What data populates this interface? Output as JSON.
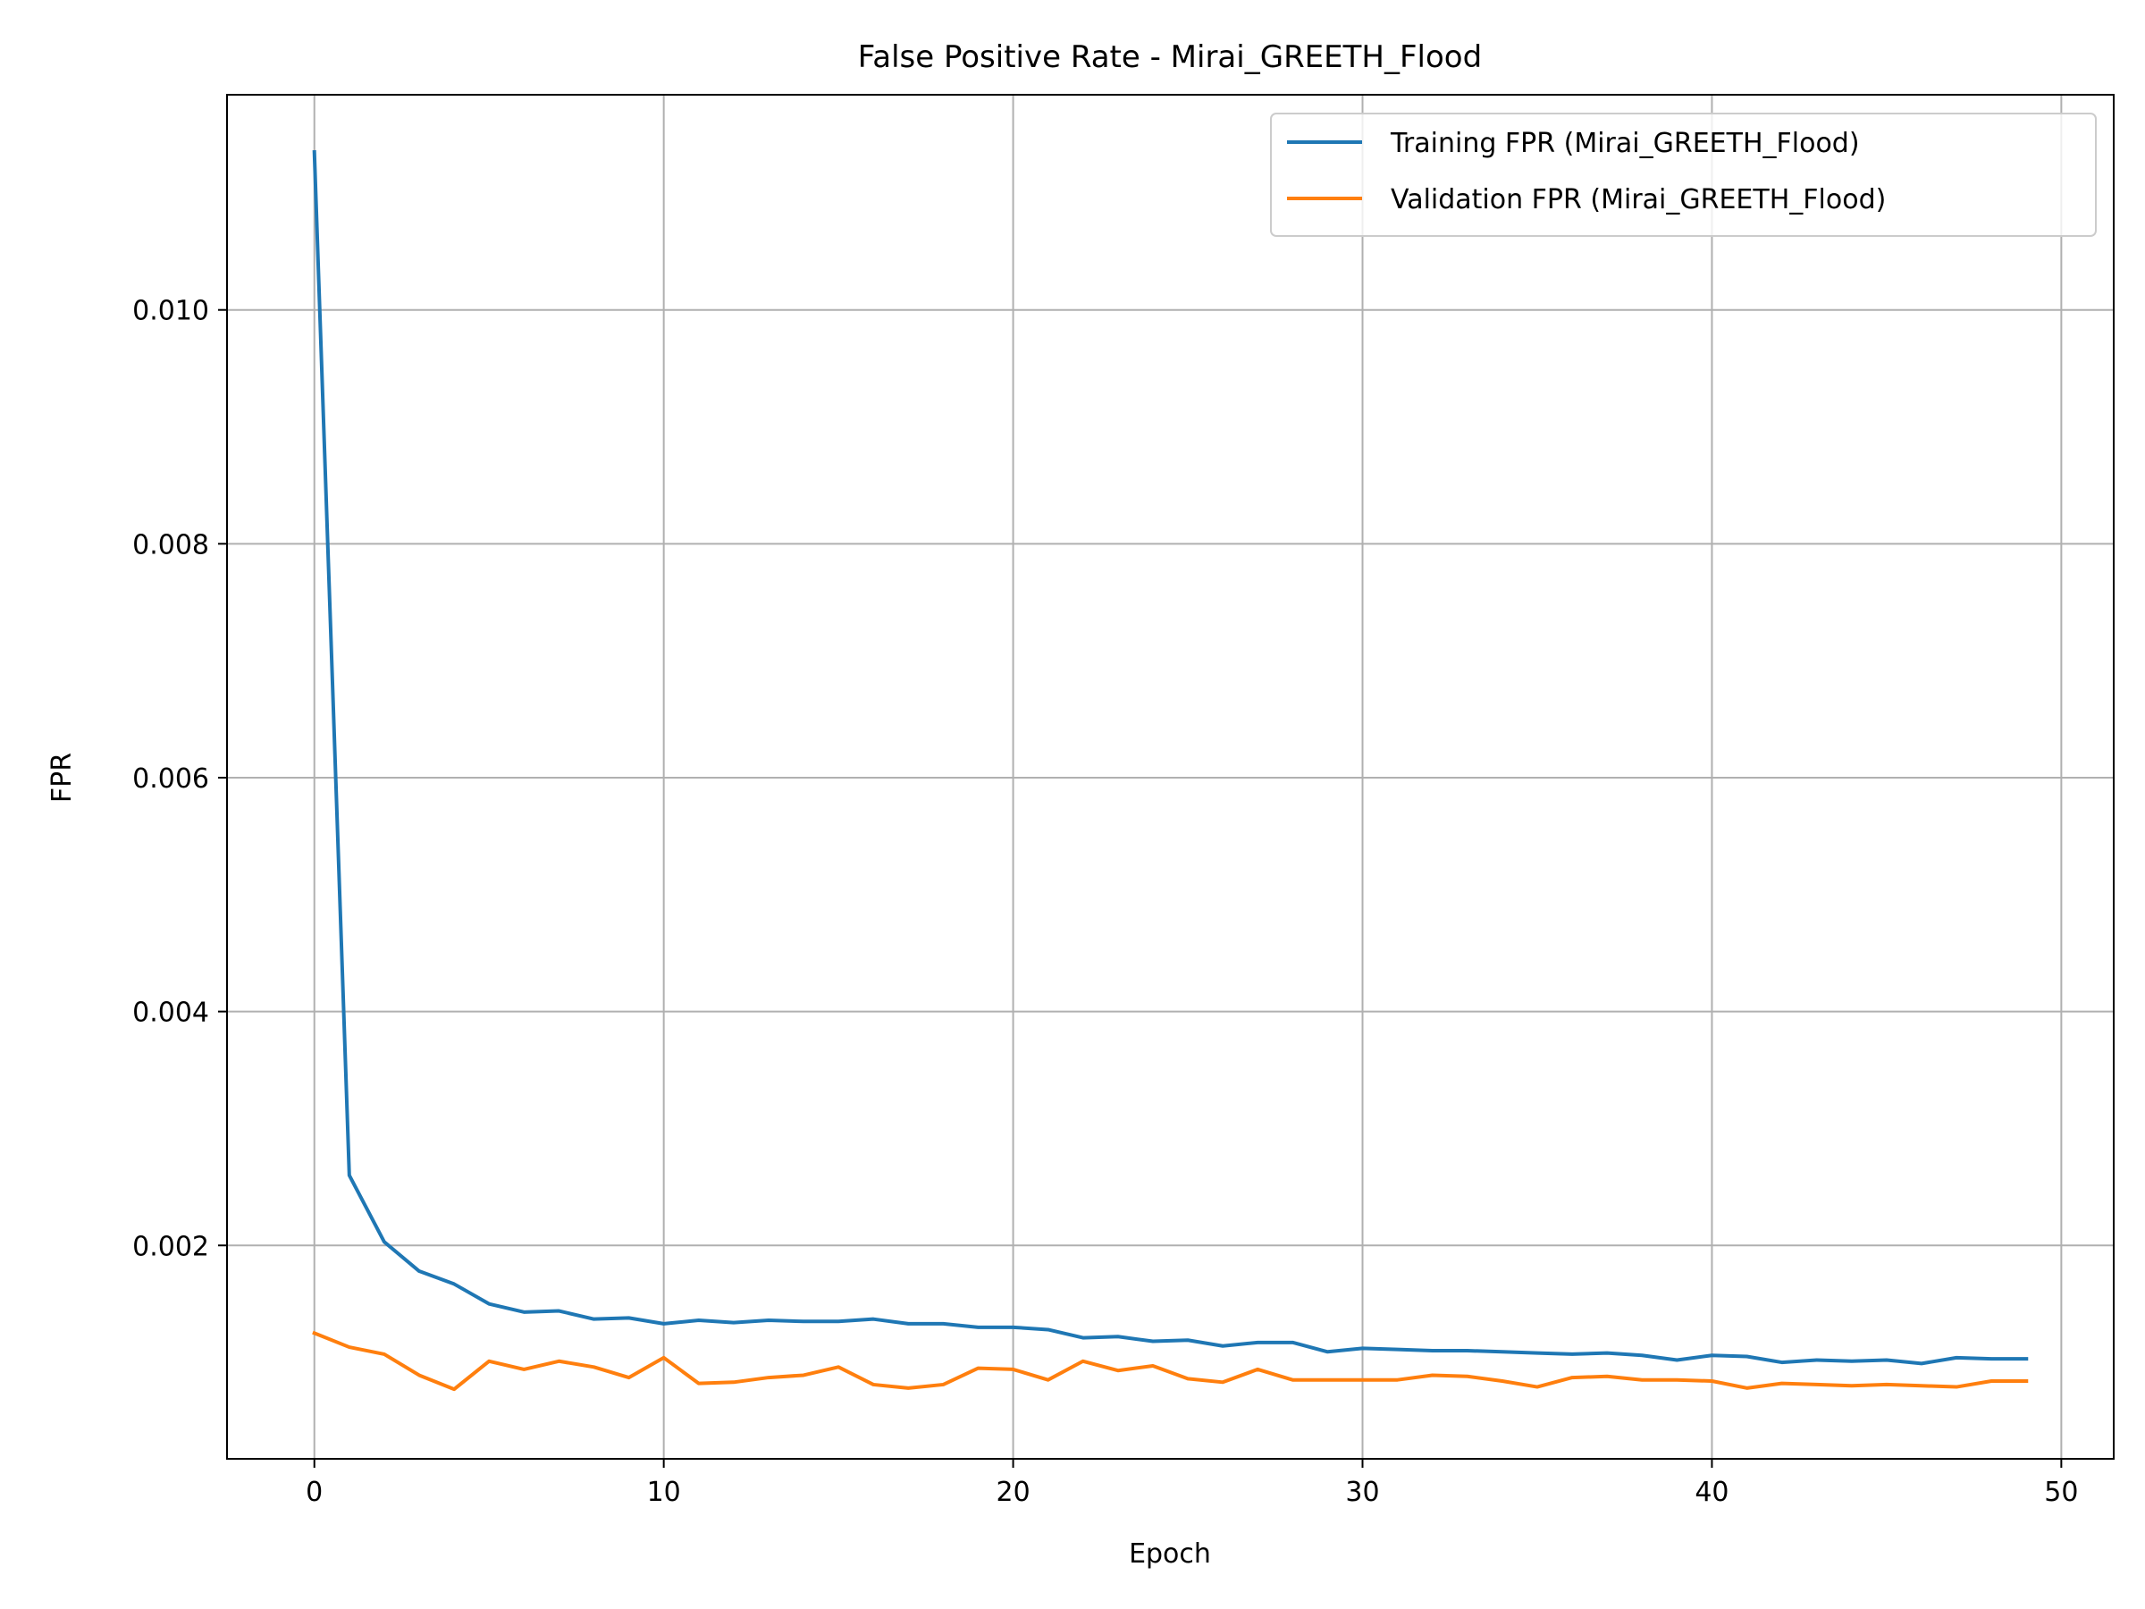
{
  "chart_data": {
    "type": "line",
    "title": "False Positive Rate - Mirai_GREETH_Flood",
    "xlabel": "Epoch",
    "ylabel": "FPR",
    "xlim": [
      -2.5,
      51.5
    ],
    "ylim": [
      0.000175,
      0.01184
    ],
    "xticks": [
      {
        "value": 0,
        "label": "0"
      },
      {
        "value": 10,
        "label": "10"
      },
      {
        "value": 20,
        "label": "20"
      },
      {
        "value": 30,
        "label": "30"
      },
      {
        "value": 40,
        "label": "40"
      },
      {
        "value": 50,
        "label": "50"
      }
    ],
    "yticks": [
      {
        "value": 0.002,
        "label": "0.002"
      },
      {
        "value": 0.004,
        "label": "0.004"
      },
      {
        "value": 0.006,
        "label": "0.006"
      },
      {
        "value": 0.008,
        "label": "0.008"
      },
      {
        "value": 0.01,
        "label": "0.010"
      }
    ],
    "grid": true,
    "legend_position": "top-right",
    "x": [
      0,
      1,
      2,
      3,
      4,
      5,
      6,
      7,
      8,
      9,
      10,
      11,
      12,
      13,
      14,
      15,
      16,
      17,
      18,
      19,
      20,
      21,
      22,
      23,
      24,
      25,
      26,
      27,
      28,
      29,
      30,
      31,
      32,
      33,
      34,
      35,
      36,
      37,
      38,
      39,
      40,
      41,
      42,
      43,
      44,
      45,
      46,
      47,
      48,
      49
    ],
    "series": [
      {
        "name": "Training FPR (Mirai_GREETH_Flood)",
        "color": "#1f77b4",
        "values": [
          0.01135,
          0.0026,
          0.00203,
          0.00178,
          0.00167,
          0.0015,
          0.00143,
          0.00144,
          0.00137,
          0.00138,
          0.00133,
          0.00136,
          0.00134,
          0.00136,
          0.00135,
          0.00135,
          0.00137,
          0.00133,
          0.00133,
          0.0013,
          0.0013,
          0.00128,
          0.00121,
          0.00122,
          0.00118,
          0.00119,
          0.00114,
          0.00117,
          0.00117,
          0.00109,
          0.00112,
          0.00111,
          0.0011,
          0.0011,
          0.00109,
          0.00108,
          0.00107,
          0.00108,
          0.00106,
          0.00102,
          0.00106,
          0.00105,
          0.001,
          0.00102,
          0.00101,
          0.00102,
          0.00099,
          0.00104,
          0.00103,
          0.00103
        ]
      },
      {
        "name": "Validation FPR (Mirai_GREETH_Flood)",
        "color": "#ff7f0e",
        "values": [
          0.00125,
          0.00113,
          0.00107,
          0.00089,
          0.00077,
          0.00101,
          0.00094,
          0.00101,
          0.00096,
          0.00087,
          0.00104,
          0.00082,
          0.00083,
          0.00087,
          0.00089,
          0.00096,
          0.00081,
          0.00078,
          0.00081,
          0.00095,
          0.00094,
          0.00085,
          0.00101,
          0.00093,
          0.00097,
          0.00086,
          0.00083,
          0.00094,
          0.00085,
          0.00085,
          0.00085,
          0.00085,
          0.00089,
          0.00088,
          0.00084,
          0.00079,
          0.00087,
          0.00088,
          0.00085,
          0.00085,
          0.00084,
          0.00078,
          0.00082,
          0.00081,
          0.0008,
          0.00081,
          0.0008,
          0.00079,
          0.00084,
          0.00084
        ]
      }
    ]
  }
}
